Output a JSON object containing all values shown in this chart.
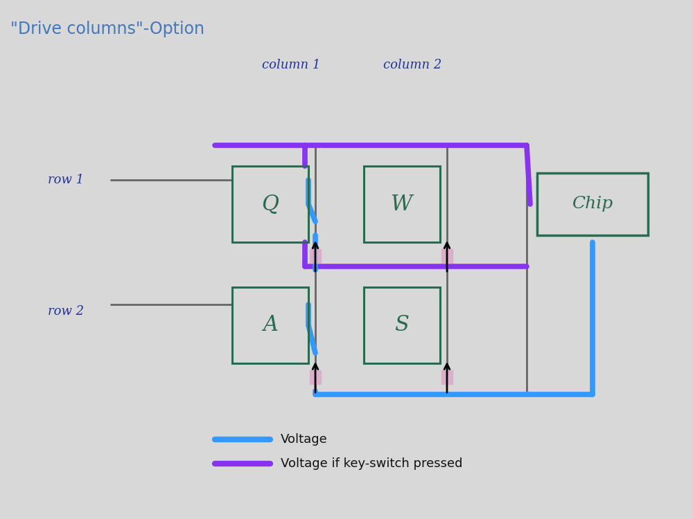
{
  "title": "\"Drive columns\"-Option",
  "title_color": "#4477bb",
  "title_fontsize": 17,
  "bg_color": "#dcdcdc",
  "switch_color": "#2a6a50",
  "chip_color": "#2a6a50",
  "blue_line_color": "#3399ff",
  "purple_line_color": "#8833ee",
  "dark_line_color": "#666666",
  "legend_blue": "Voltage",
  "legend_purple": "Voltage if key-switch pressed",
  "col1_label": "column 1",
  "col2_label": "column 2",
  "row1_label": "row 1",
  "row2_label": "row 2",
  "switch_Q": "Q",
  "switch_W": "W",
  "switch_A": "A",
  "switch_S": "S",
  "chip_label": "Chip",
  "diode_color": "#ddaacc"
}
